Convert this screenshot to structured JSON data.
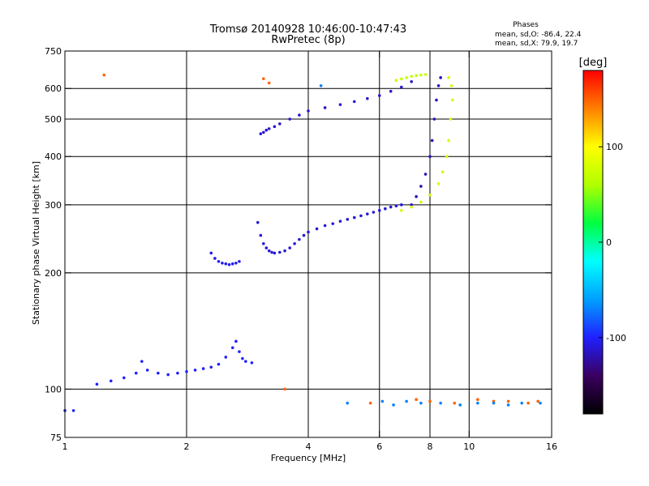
{
  "chart_data": {
    "type": "scatter",
    "title": "Tromsø 20140928 10:46:00-10:47:43",
    "subtitle": "RwPretec (8p)",
    "stats": {
      "heading": "Phases",
      "line_o": "mean, sd,O: -86.4, 22.4",
      "line_x": "mean, sd,X:  79.9, 19.7"
    },
    "xlabel": "Frequency [MHz]",
    "ylabel": "Stationary phase Virtual Height [km]",
    "x_scale": "log",
    "y_scale": "log",
    "xlim": [
      1,
      16
    ],
    "ylim": [
      75,
      750
    ],
    "x_ticks": [
      1,
      2,
      4,
      6,
      8,
      10,
      16
    ],
    "x_tick_labels": [
      "1",
      "2",
      "4",
      "6",
      "8",
      "10",
      "16"
    ],
    "x_grid": [
      2,
      4,
      6,
      8,
      10
    ],
    "y_ticks": [
      75,
      100,
      200,
      300,
      400,
      500,
      600,
      750
    ],
    "y_tick_labels": [
      "75",
      "100",
      "200",
      "300",
      "400",
      "500",
      "600",
      "750"
    ],
    "y_grid": [
      100,
      200,
      300,
      400,
      500,
      600
    ],
    "grid": true,
    "colorbar": {
      "label": "[deg]",
      "range": [
        -180,
        180
      ],
      "ticks": [
        100,
        0,
        -100
      ],
      "tick_labels": [
        "100",
        "0",
        "-100"
      ],
      "colors": [
        "#000000",
        "#3a0060",
        "#2020ff",
        "#00a0ff",
        "#00ffff",
        "#00ff40",
        "#b0ff00",
        "#ffff00",
        "#ff8000",
        "#ff0000"
      ]
    },
    "series": [
      {
        "phase": -100,
        "x": [
          1.0,
          1.05,
          1.2,
          1.3,
          1.4,
          1.5,
          1.55,
          1.6,
          1.7,
          1.8,
          1.9,
          2.0,
          2.1,
          2.2,
          2.3,
          2.4,
          2.5,
          2.6,
          2.65,
          2.7,
          2.75,
          2.8,
          2.9
        ],
        "y": [
          88,
          88,
          103,
          105,
          107,
          110,
          118,
          112,
          110,
          109,
          110,
          111,
          112,
          113,
          114,
          116,
          121,
          128,
          133,
          125,
          120,
          118,
          117
        ]
      },
      {
        "phase": -105,
        "x": [
          2.3,
          2.35,
          2.4,
          2.45,
          2.5,
          2.55,
          2.6,
          2.65,
          2.7
        ],
        "y": [
          225,
          218,
          214,
          212,
          211,
          210,
          211,
          212,
          214
        ]
      },
      {
        "phase": -110,
        "x": [
          3.0,
          3.05,
          3.1,
          3.15,
          3.2,
          3.25,
          3.3,
          3.4,
          3.5,
          3.6,
          3.7,
          3.8,
          3.9,
          4.0,
          4.2,
          4.4,
          4.6,
          4.8,
          5.0,
          5.2,
          5.4,
          5.6,
          5.8,
          6.0,
          6.2,
          6.4,
          6.6,
          6.8
        ],
        "y": [
          270,
          250,
          238,
          232,
          228,
          226,
          225,
          226,
          228,
          232,
          238,
          244,
          250,
          255,
          260,
          265,
          268,
          272,
          275,
          278,
          281,
          284,
          287,
          290,
          293,
          296,
          298,
          300
        ]
      },
      {
        "phase": -112,
        "x": [
          3.05,
          3.1,
          3.15,
          3.2,
          3.3,
          3.4,
          3.6,
          3.8,
          4.0,
          4.4,
          4.8,
          5.2,
          5.6,
          6.0,
          6.4,
          6.8,
          7.2
        ],
        "y": [
          458,
          462,
          468,
          472,
          478,
          486,
          500,
          512,
          525,
          535,
          545,
          555,
          565,
          575,
          590,
          605,
          625
        ]
      },
      {
        "phase": -118,
        "x": [
          7.2,
          7.4,
          7.6,
          7.8,
          8.0,
          8.1,
          8.2,
          8.3,
          8.4,
          8.5
        ],
        "y": [
          300,
          315,
          335,
          360,
          400,
          440,
          500,
          560,
          610,
          640
        ]
      },
      {
        "phase": 75,
        "x": [
          6.8,
          7.2,
          7.6,
          8.0,
          8.4,
          8.6,
          8.8,
          8.9,
          9.0,
          9.1,
          9.05,
          8.9
        ],
        "y": [
          290,
          296,
          305,
          318,
          340,
          365,
          400,
          440,
          500,
          560,
          610,
          640
        ]
      },
      {
        "phase": 70,
        "x": [
          6.6,
          6.8,
          7.0,
          7.2,
          7.4,
          7.6,
          7.8
        ],
        "y": [
          630,
          635,
          640,
          645,
          648,
          650,
          652
        ]
      },
      {
        "phase": 150,
        "x": [
          1.25,
          3.1,
          3.2,
          3.5,
          5.7,
          7.4,
          8.0,
          9.2,
          10.5,
          11.5,
          12.5,
          14.0,
          14.8
        ],
        "y": [
          650,
          636,
          620,
          100,
          92,
          94,
          93,
          92,
          94,
          93,
          93,
          92,
          93
        ]
      },
      {
        "phase": -70,
        "x": [
          4.3,
          5.0,
          6.1,
          6.5,
          7.0,
          7.6,
          8.5,
          9.5,
          10.5,
          11.5,
          12.5,
          13.5,
          15.0
        ],
        "y": [
          610,
          92,
          93,
          91,
          93,
          92,
          92,
          91,
          92,
          92,
          91,
          92,
          92
        ]
      }
    ]
  }
}
